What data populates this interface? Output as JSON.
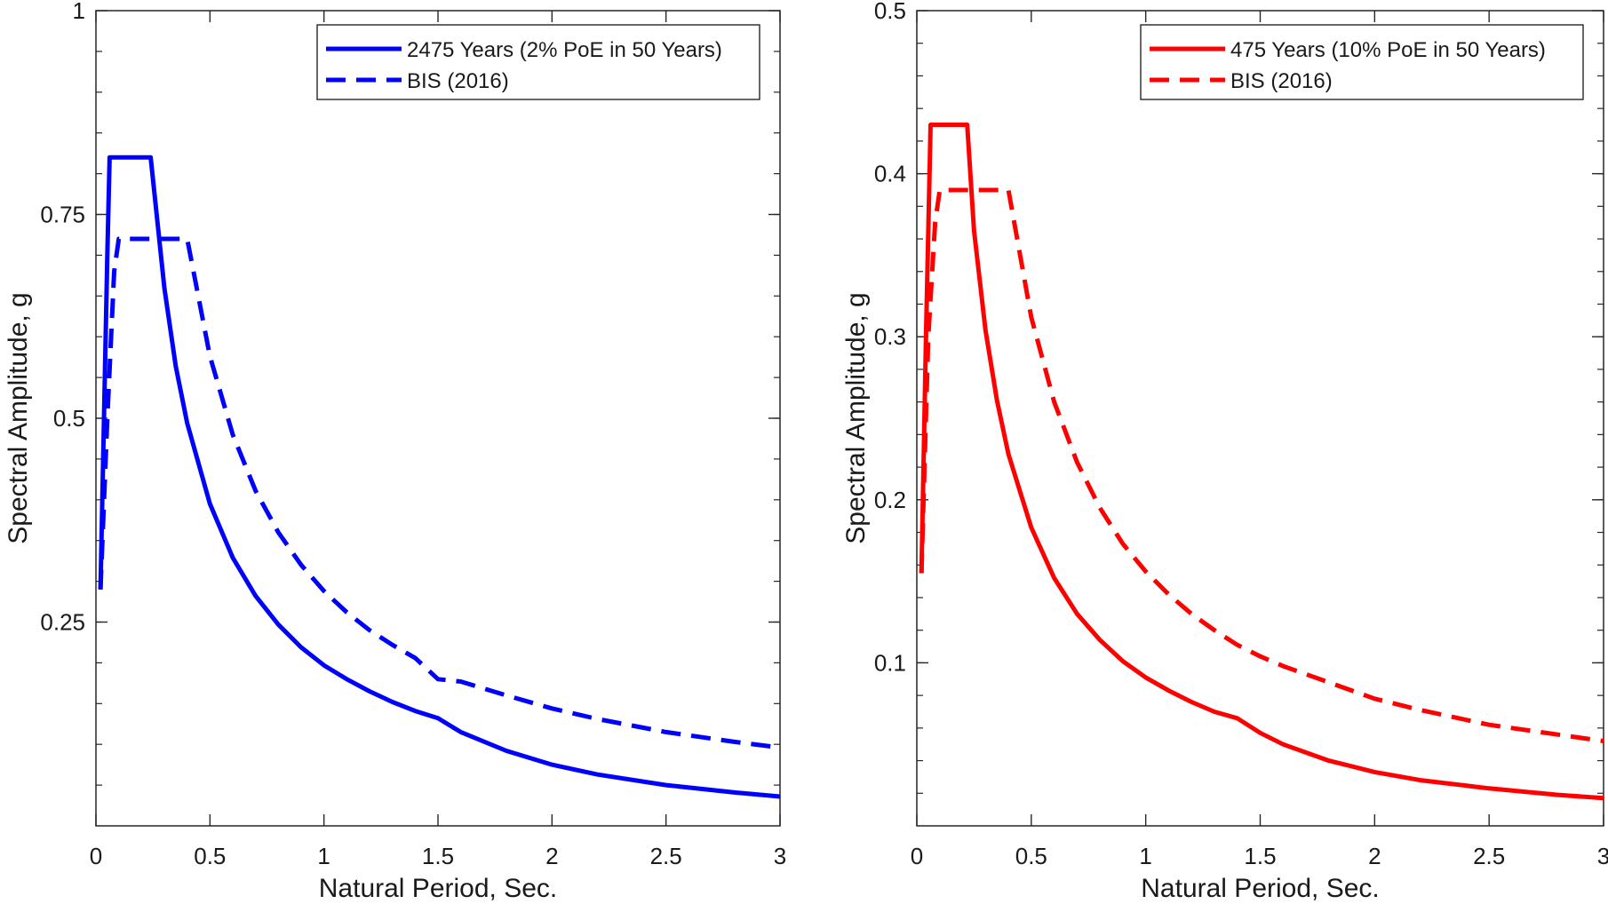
{
  "chart_data": [
    {
      "type": "line",
      "title": "",
      "xlabel": "Natural Period, Sec.",
      "ylabel": "Spectral Amplitude, g",
      "xlim": [
        0,
        3
      ],
      "ylim": [
        0,
        1
      ],
      "xticks": [
        0,
        0.5,
        1,
        1.5,
        2,
        2.5,
        3
      ],
      "xtick_labels": [
        "0",
        "0.5",
        "1",
        "1.5",
        "2",
        "2.5",
        "3"
      ],
      "yticks": [
        0.25,
        0.5,
        0.75,
        1
      ],
      "ytick_labels": [
        "0.25",
        "0.5",
        "0.75",
        "1"
      ],
      "y_minor_step": 0.05,
      "grid": false,
      "legend_position": "top-right",
      "series": [
        {
          "name": "2475 Years (2% PoE in 50 Years)",
          "color": "#0000ff",
          "style": "solid",
          "x": [
            0.02,
            0.05,
            0.06,
            0.1,
            0.15,
            0.2,
            0.24,
            0.3,
            0.35,
            0.4,
            0.5,
            0.6,
            0.7,
            0.8,
            0.9,
            1.0,
            1.1,
            1.2,
            1.3,
            1.4,
            1.5,
            1.6,
            1.8,
            2.0,
            2.2,
            2.5,
            2.8,
            3.0
          ],
          "y": [
            0.29,
            0.7,
            0.82,
            0.82,
            0.82,
            0.82,
            0.82,
            0.66,
            0.564,
            0.494,
            0.395,
            0.329,
            0.282,
            0.247,
            0.219,
            0.197,
            0.18,
            0.165,
            0.152,
            0.141,
            0.132,
            0.115,
            0.092,
            0.075,
            0.063,
            0.05,
            0.041,
            0.036
          ]
        },
        {
          "name": "BIS (2016)",
          "color": "#0000ff",
          "style": "dashed",
          "x": [
            0.02,
            0.05,
            0.08,
            0.1,
            0.2,
            0.3,
            0.4,
            0.5,
            0.6,
            0.7,
            0.8,
            0.9,
            1.0,
            1.1,
            1.2,
            1.3,
            1.4,
            1.5,
            1.6,
            1.8,
            2.0,
            2.2,
            2.5,
            2.8,
            3.0
          ],
          "y": [
            0.29,
            0.5,
            0.68,
            0.72,
            0.72,
            0.72,
            0.72,
            0.576,
            0.48,
            0.411,
            0.36,
            0.32,
            0.288,
            0.262,
            0.24,
            0.222,
            0.206,
            0.18,
            0.177,
            0.16,
            0.144,
            0.131,
            0.115,
            0.103,
            0.096
          ]
        }
      ]
    },
    {
      "type": "line",
      "title": "",
      "xlabel": "Natural Period, Sec.",
      "ylabel": "Spectral Amplitude, g",
      "xlim": [
        0,
        3
      ],
      "ylim": [
        0,
        0.5
      ],
      "xticks": [
        0,
        0.5,
        1,
        1.5,
        2,
        2.5,
        3
      ],
      "xtick_labels": [
        "0",
        "0.5",
        "1",
        "1.5",
        "2",
        "2.5",
        "3"
      ],
      "yticks": [
        0.1,
        0.2,
        0.3,
        0.4,
        0.5
      ],
      "ytick_labels": [
        "0.1",
        "0.2",
        "0.3",
        "0.4",
        "0.5"
      ],
      "y_minor_step": 0.02,
      "grid": false,
      "legend_position": "top-right",
      "series": [
        {
          "name": "475 Years (10% PoE in 50 Years)",
          "color": "#ff0000",
          "style": "solid",
          "x": [
            0.02,
            0.04,
            0.06,
            0.1,
            0.15,
            0.2,
            0.22,
            0.25,
            0.3,
            0.35,
            0.4,
            0.5,
            0.6,
            0.7,
            0.8,
            0.9,
            1.0,
            1.1,
            1.2,
            1.3,
            1.4,
            1.5,
            1.6,
            1.8,
            2.0,
            2.2,
            2.5,
            2.8,
            3.0
          ],
          "y": [
            0.155,
            0.3,
            0.43,
            0.43,
            0.43,
            0.43,
            0.43,
            0.365,
            0.304,
            0.261,
            0.228,
            0.183,
            0.152,
            0.13,
            0.114,
            0.101,
            0.091,
            0.083,
            0.076,
            0.07,
            0.066,
            0.057,
            0.05,
            0.04,
            0.033,
            0.028,
            0.023,
            0.019,
            0.017
          ]
        },
        {
          "name": "BIS (2016)",
          "color": "#ff0000",
          "style": "dashed",
          "x": [
            0.02,
            0.05,
            0.08,
            0.1,
            0.2,
            0.3,
            0.4,
            0.5,
            0.6,
            0.7,
            0.8,
            0.9,
            1.0,
            1.1,
            1.2,
            1.3,
            1.4,
            1.5,
            1.6,
            1.8,
            2.0,
            2.2,
            2.5,
            2.8,
            3.0
          ],
          "y": [
            0.155,
            0.3,
            0.37,
            0.39,
            0.39,
            0.39,
            0.39,
            0.312,
            0.26,
            0.223,
            0.195,
            0.173,
            0.156,
            0.142,
            0.13,
            0.12,
            0.111,
            0.104,
            0.098,
            0.088,
            0.078,
            0.071,
            0.062,
            0.056,
            0.052
          ]
        }
      ]
    }
  ]
}
